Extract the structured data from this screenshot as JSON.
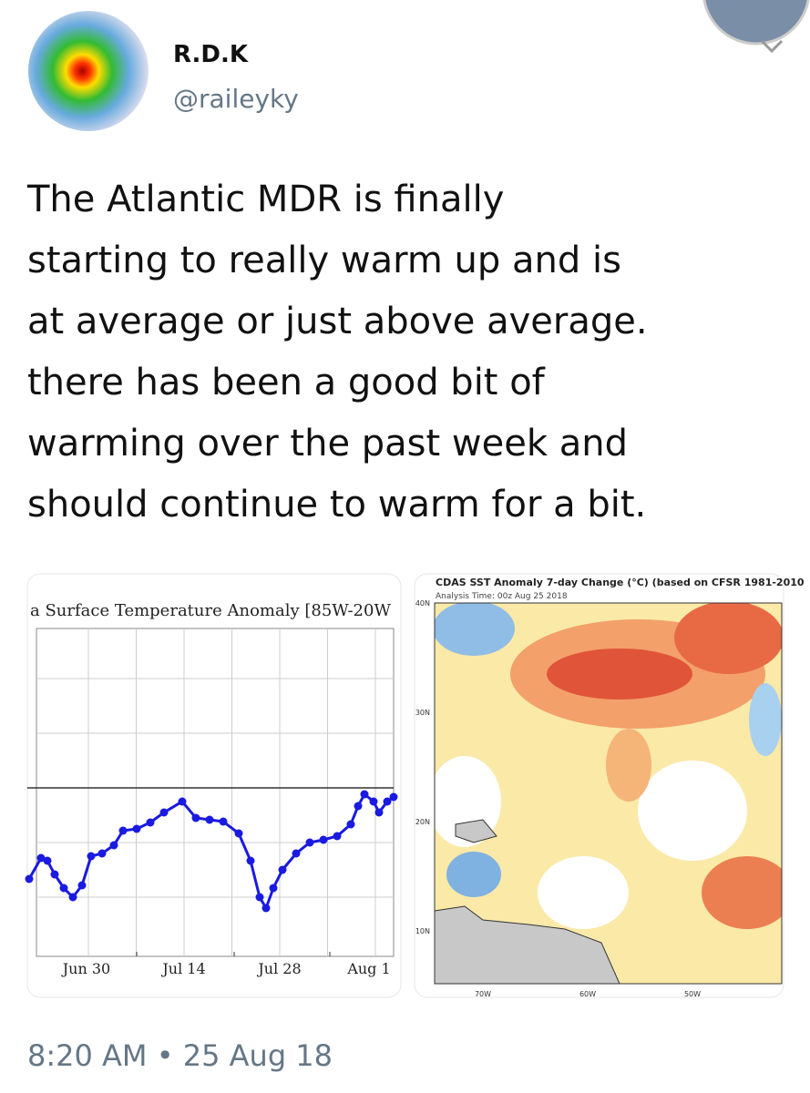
{
  "user": {
    "name": "R.D.K",
    "handle": "@raileyky"
  },
  "tweet": {
    "lines": [
      "The Atlantic MDR is finally",
      "starting to really warm up and is",
      "at average or just above average.",
      "there has been a good bit of",
      "warming over the past week and",
      "should continue to warm for a bit."
    ]
  },
  "media": [
    {
      "title": "a Surface Temperature Anomaly [85W-20W",
      "x_labels": [
        "Jun 30",
        "Jul 14",
        "Jul 28",
        "Aug 1"
      ]
    },
    {
      "title": "CDAS SST Anomaly 7-day Change (°C) (based on CFSR 1981-2010",
      "subtitle": "Analysis Time: 00z Aug 25 2018",
      "lat_labels": [
        "40N",
        "30N",
        "20N",
        "10N"
      ],
      "lon_labels": [
        "70W",
        "60W",
        "50W"
      ]
    }
  ],
  "timestamp": "8:20 AM • 25 Aug 18"
}
